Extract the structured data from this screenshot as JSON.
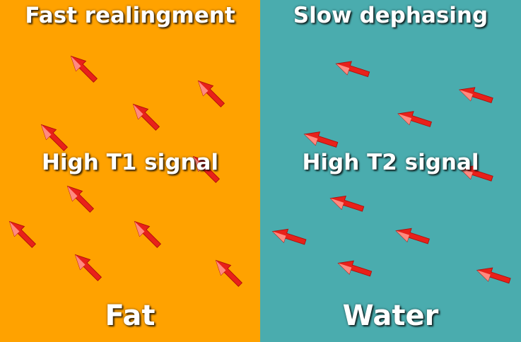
{
  "colors": {
    "fat_bg": "#FFA200",
    "water_bg": "#4AACAE",
    "arrow": "#E8211A",
    "arrow_highlight": "#FF8A80",
    "label": "#FFFFFF"
  },
  "fat": {
    "top_label": "Fast realingment",
    "mid_label": "High T1 signal",
    "bottom_label": "Fat"
  },
  "water": {
    "top_label": "Slow dephasing",
    "mid_label": "High T2 signal",
    "bottom_label": "Water"
  }
}
